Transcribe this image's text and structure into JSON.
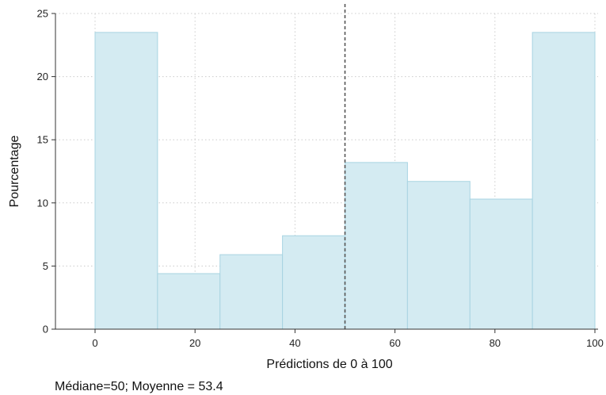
{
  "chart_data": {
    "type": "bar",
    "subtype": "histogram",
    "bins": [
      {
        "start": 0,
        "end": 12.5,
        "value": 23.5
      },
      {
        "start": 12.5,
        "end": 25,
        "value": 4.4
      },
      {
        "start": 25,
        "end": 37.5,
        "value": 5.9
      },
      {
        "start": 37.5,
        "end": 50,
        "value": 7.4
      },
      {
        "start": 50,
        "end": 62.5,
        "value": 13.2
      },
      {
        "start": 62.5,
        "end": 75,
        "value": 11.7
      },
      {
        "start": 75,
        "end": 87.5,
        "value": 10.3
      },
      {
        "start": 87.5,
        "end": 100,
        "value": 23.5
      }
    ],
    "xlabel": "Prédictions de 0 à 100",
    "ylabel": "Pourcentage",
    "xlim": [
      -8,
      101
    ],
    "ylim": [
      0,
      25
    ],
    "xticks": [
      0,
      20,
      40,
      60,
      80,
      100
    ],
    "yticks": [
      0,
      5,
      10,
      15,
      20,
      25
    ],
    "reference_line": {
      "x": 50,
      "style": "dashed"
    },
    "grid": true,
    "note": "Médiane=50; Moyenne = 53.4",
    "colors": {
      "bar_fill": "#d4ebf2",
      "bar_stroke": "#a8d4e2",
      "grid": "#cccccc",
      "reference_line": "#555555"
    }
  }
}
